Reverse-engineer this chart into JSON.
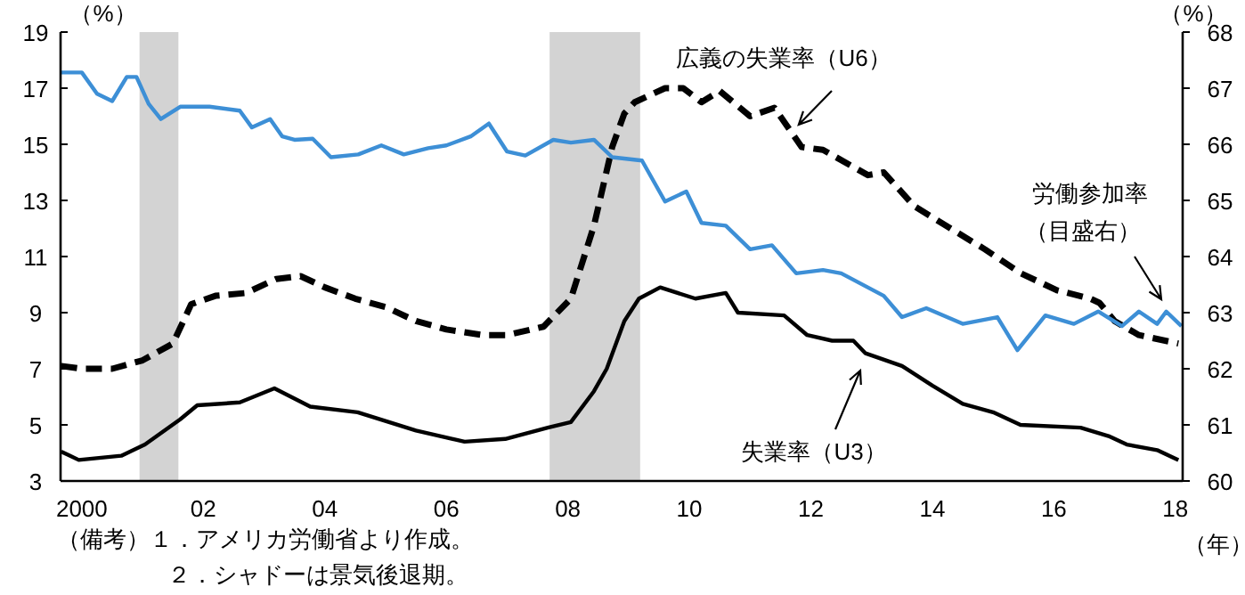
{
  "chart_data": {
    "type": "line",
    "xlabel": "（年）",
    "ylabel": "（%）",
    "y2label": "（%）",
    "xlim": [
      1999.65,
      2018.12
    ],
    "xticks": [
      {
        "value": 2000,
        "label": "2000"
      },
      {
        "value": 2002,
        "label": "02"
      },
      {
        "value": 2004,
        "label": "04"
      },
      {
        "value": 2006,
        "label": "06"
      },
      {
        "value": 2008,
        "label": "08"
      },
      {
        "value": 2010,
        "label": "10"
      },
      {
        "value": 2012,
        "label": "12"
      },
      {
        "value": 2014,
        "label": "14"
      },
      {
        "value": 2016,
        "label": "16"
      },
      {
        "value": 2018,
        "label": "18"
      }
    ],
    "ylim": [
      3,
      19
    ],
    "yticks": [
      3,
      5,
      7,
      9,
      11,
      13,
      15,
      17,
      19
    ],
    "y2lim": [
      60,
      68
    ],
    "y2ticks": [
      60,
      61,
      62,
      63,
      64,
      65,
      66,
      67,
      68
    ],
    "grid": false,
    "marker": "none",
    "bands": [
      {
        "axis": "x",
        "from": 2000.95,
        "to": 2001.59,
        "color": "#d3d3d3"
      },
      {
        "axis": "x",
        "from": 2007.7,
        "to": 2009.19,
        "color": "#d3d3d3"
      }
    ],
    "series": [
      {
        "color": "#000000",
        "line_style": "dashed",
        "x": [
          1999.66,
          2000.0,
          2000.5,
          2001.0,
          2001.5,
          2001.8,
          2002.2,
          2002.7,
          2003.2,
          2003.6,
          2004.0,
          2004.5,
          2005.0,
          2005.5,
          2006.0,
          2006.6,
          2007.0,
          2007.6,
          2008.05,
          2008.43,
          2008.73,
          2008.93,
          2009.1,
          2009.6,
          2009.9,
          2010.2,
          2010.5,
          2011.0,
          2011.4,
          2011.85,
          2012.2,
          2012.94,
          2013.2,
          2013.7,
          2014.3,
          2014.87,
          2015.46,
          2016.05,
          2016.6,
          2016.75,
          2017.0,
          2017.4,
          2018.05
        ],
        "values": [
          7.1,
          7.0,
          7.0,
          7.3,
          7.9,
          9.3,
          9.6,
          9.7,
          10.2,
          10.3,
          9.9,
          9.5,
          9.2,
          8.7,
          8.4,
          8.2,
          8.2,
          8.5,
          9.5,
          12.1,
          14.9,
          16.1,
          16.5,
          17.0,
          17.0,
          16.5,
          16.9,
          16.0,
          16.3,
          14.9,
          14.8,
          13.9,
          14.0,
          12.8,
          12.0,
          11.25,
          10.4,
          9.8,
          9.5,
          9.35,
          8.7,
          8.2,
          7.9
        ]
      },
      {
        "color": "#000000",
        "line_style": "solid",
        "x": [
          1999.66,
          1999.95,
          2000.65,
          2001.04,
          2001.62,
          2001.9,
          2002.6,
          2003.17,
          2003.76,
          2004.54,
          2005.5,
          2006.3,
          2006.97,
          2007.67,
          2008.05,
          2008.43,
          2008.64,
          2008.93,
          2009.17,
          2009.52,
          2010.1,
          2010.6,
          2010.8,
          2011.56,
          2011.94,
          2012.35,
          2012.7,
          2012.9,
          2013.5,
          2014.0,
          2014.5,
          2015.0,
          2015.45,
          2016.44,
          2016.9,
          2017.2,
          2017.7,
          2018.05
        ],
        "values": [
          4.05,
          3.75,
          3.9,
          4.3,
          5.2,
          5.7,
          5.8,
          6.3,
          5.65,
          5.45,
          4.8,
          4.4,
          4.5,
          4.9,
          5.1,
          6.2,
          7.0,
          8.7,
          9.5,
          9.9,
          9.5,
          9.7,
          9.0,
          8.9,
          8.2,
          8.0,
          8.0,
          7.55,
          7.1,
          6.4,
          5.75,
          5.45,
          5.0,
          4.9,
          4.6,
          4.3,
          4.1,
          3.75
        ]
      },
      {
        "color": "#3d8fd6",
        "line_style": "solid",
        "axis": "y2",
        "x": [
          1999.66,
          2000.0,
          2000.25,
          2000.5,
          2000.74,
          2000.9,
          2001.1,
          2001.3,
          2001.62,
          2002.1,
          2002.6,
          2002.8,
          2003.1,
          2003.3,
          2003.5,
          2003.8,
          2004.1,
          2004.55,
          2004.93,
          2005.3,
          2005.7,
          2006.0,
          2006.4,
          2006.7,
          2007.0,
          2007.3,
          2007.76,
          2008.05,
          2008.43,
          2008.73,
          2009.22,
          2009.6,
          2009.95,
          2010.2,
          2010.6,
          2011.0,
          2011.36,
          2011.76,
          2012.2,
          2012.5,
          2013.2,
          2013.5,
          2013.9,
          2014.5,
          2015.07,
          2015.4,
          2015.86,
          2016.33,
          2016.73,
          2017.12,
          2017.4,
          2017.7,
          2017.85,
          2018.1
        ],
        "values": [
          67.28,
          67.28,
          66.9,
          66.77,
          67.2,
          67.2,
          66.72,
          66.45,
          66.67,
          66.67,
          66.6,
          66.3,
          66.45,
          66.14,
          66.08,
          66.1,
          65.77,
          65.82,
          65.98,
          65.82,
          65.93,
          65.98,
          66.14,
          66.37,
          65.87,
          65.8,
          66.08,
          66.03,
          66.08,
          65.77,
          65.71,
          64.98,
          65.16,
          64.6,
          64.55,
          64.13,
          64.2,
          63.7,
          63.76,
          63.7,
          63.3,
          62.92,
          63.08,
          62.8,
          62.92,
          62.33,
          62.95,
          62.8,
          63.02,
          62.76,
          63.02,
          62.8,
          63.02,
          62.76
        ]
      }
    ],
    "annotations": [
      {
        "text": "広義の失業率（U6）",
        "x": 2011.8,
        "y": 15.7
      },
      "失業率（U3）",
      "労働参加率（目盛右）",
      "（備考）１．アメリカ労働省より作成。",
      "２．シャドーは景気後退期。"
    ]
  }
}
